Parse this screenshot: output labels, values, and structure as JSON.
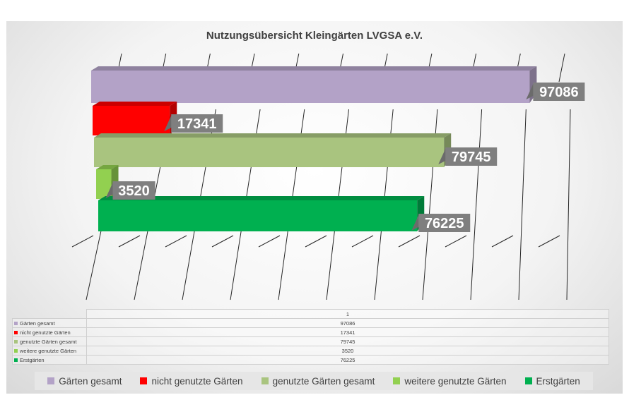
{
  "chart_data": {
    "type": "bar",
    "title": "Nutzungsübersicht Kleingärten LVGSA e.V.",
    "orientation": "horizontal",
    "three_d": true,
    "categories": [
      "1"
    ],
    "series": [
      {
        "name": "Gärten gesamt",
        "values": [
          97086
        ],
        "color": "#b3a2c7"
      },
      {
        "name": "nicht genutzte Gärten",
        "values": [
          17341
        ],
        "color": "#ff0000"
      },
      {
        "name": "genutzte Gärten gesamt",
        "values": [
          79745
        ],
        "color": "#a9c47f"
      },
      {
        "name": "weitere genutzte Gärten",
        "values": [
          3520
        ],
        "color": "#92d050"
      },
      {
        "name": "Erstgärten",
        "values": [
          76225
        ],
        "color": "#00b050"
      }
    ],
    "data_labels": [
      "97086",
      "17341",
      "79745",
      "3520",
      "76225"
    ],
    "xlim": [
      0,
      100000
    ],
    "legend": "bottom",
    "data_table": true,
    "gridlines": true
  }
}
